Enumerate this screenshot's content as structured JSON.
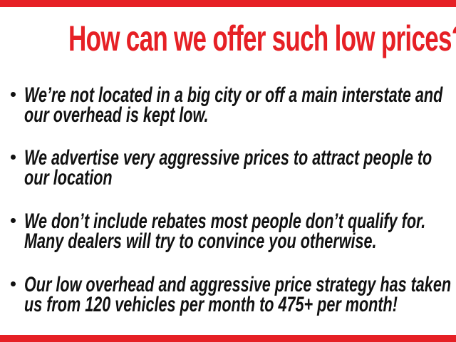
{
  "headline": "How can we offer such low prices?",
  "bullets": [
    {
      "lines": [
        "We’re not located in a big city or off a main interstate and",
        "our overhead is kept low."
      ]
    },
    {
      "lines": [
        "We advertise very aggressive prices to attract people to",
        "our location"
      ]
    },
    {
      "lines": [
        "We don’t include rebates most people don’t qualify for.",
        "Many dealers will try to convince you otherwise."
      ]
    },
    {
      "lines": [
        "Our low overhead and aggressive price strategy has taken",
        "us from 120 vehicles per month to 475+ per month!"
      ]
    }
  ],
  "colors": {
    "accent_red": "#E62025",
    "text_black": "#111111",
    "background": "#FFFFFF"
  }
}
